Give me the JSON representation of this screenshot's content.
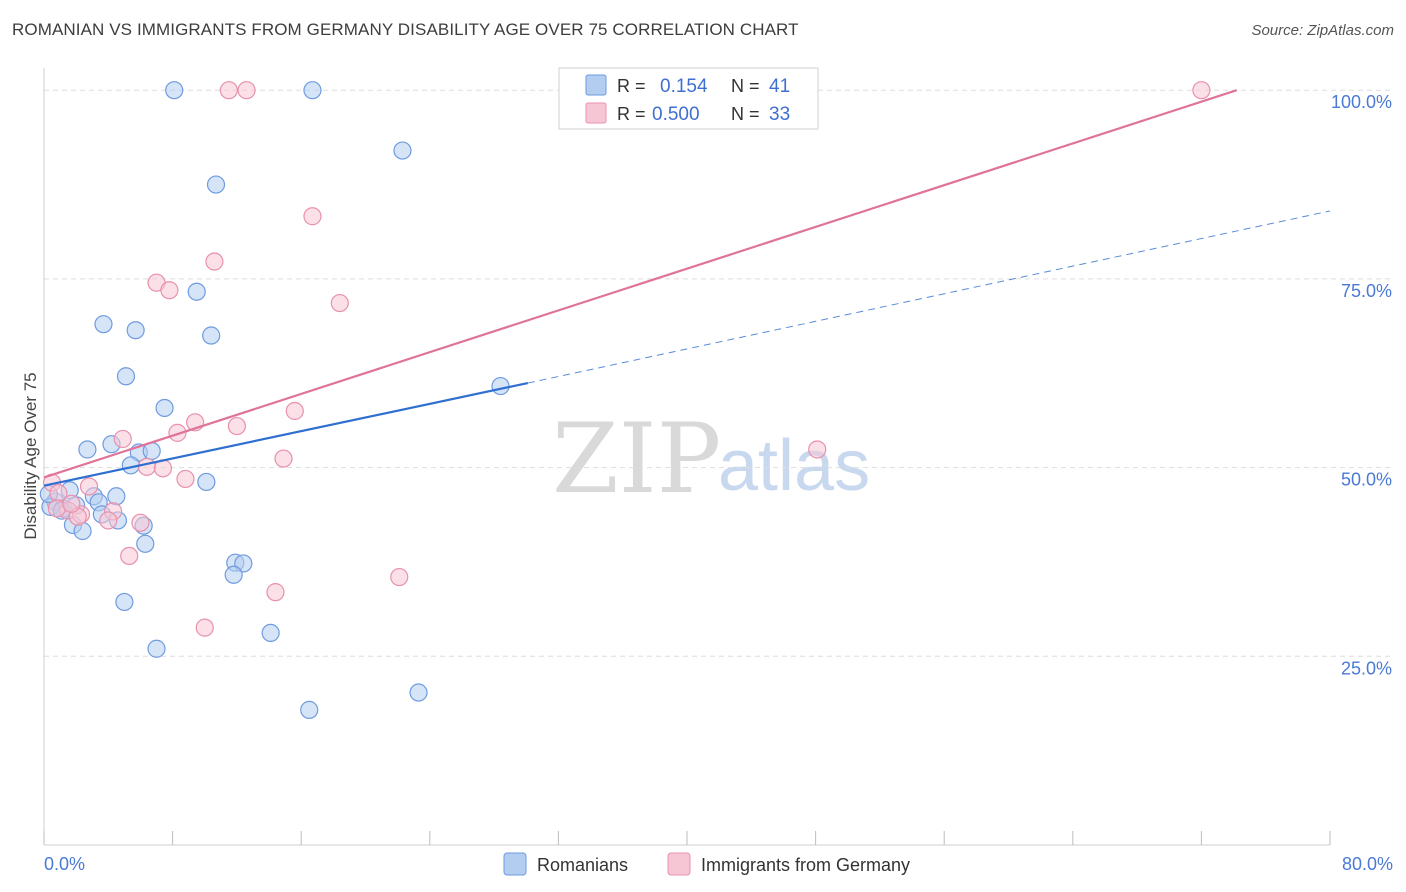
{
  "title": "ROMANIAN VS IMMIGRANTS FROM GERMANY DISABILITY AGE OVER 75 CORRELATION CHART",
  "source": "Source: ZipAtlas.com",
  "watermark": {
    "zip": "ZIP",
    "atlas": "atlas"
  },
  "colors": {
    "blue_fill": "#b3cdf1",
    "blue_stroke": "#6f9be0",
    "blue_line": "#2f6fd0",
    "pink_fill": "#f7c6d5",
    "pink_stroke": "#e891ad",
    "pink_line": "#e0739a",
    "tick_text": "#4a7ad6",
    "grid": "#dddddd"
  },
  "legend": {
    "r_label": "R =",
    "n_label": "N =",
    "rows": [
      {
        "r": "0.154",
        "n": "41"
      },
      {
        "r": "0.500",
        "n": "33"
      }
    ]
  },
  "bottom_legend": [
    "Romanians",
    "Immigrants from Germany"
  ],
  "chart_data": {
    "type": "scatter",
    "title": "ROMANIAN VS IMMIGRANTS FROM GERMANY DISABILITY AGE OVER 75 CORRELATION CHART",
    "xlabel": "",
    "ylabel": "Disability Age Over 75",
    "xlim": [
      0,
      80
    ],
    "ylim": [
      0,
      104
    ],
    "x_tick_labels": [
      "0.0%",
      "80.0%"
    ],
    "y_ticks": [
      25,
      50,
      75,
      100
    ],
    "y_tick_labels": [
      "25.0%",
      "50.0%",
      "75.0%",
      "100.0%"
    ],
    "grid": true,
    "legend_position": "top-center",
    "series": [
      {
        "name": "Romanians",
        "r": 0.154,
        "n": 41,
        "points": [
          [
            8.1,
            100
          ],
          [
            16.7,
            100
          ],
          [
            22.3,
            92.0
          ],
          [
            10.7,
            87.5
          ],
          [
            9.5,
            73.3
          ],
          [
            3.7,
            69.0
          ],
          [
            5.7,
            68.2
          ],
          [
            10.4,
            67.5
          ],
          [
            5.1,
            62.1
          ],
          [
            28.4,
            60.8
          ],
          [
            7.5,
            57.9
          ],
          [
            4.2,
            53.1
          ],
          [
            2.7,
            52.4
          ],
          [
            5.9,
            52.0
          ],
          [
            6.7,
            52.2
          ],
          [
            5.4,
            50.3
          ],
          [
            10.1,
            48.1
          ],
          [
            1.6,
            47.0
          ],
          [
            4.5,
            46.2
          ],
          [
            0.7,
            45.5
          ],
          [
            1.2,
            44.6
          ],
          [
            3.1,
            46.2
          ],
          [
            3.4,
            45.4
          ],
          [
            0.4,
            44.8
          ],
          [
            1.1,
            44.3
          ],
          [
            3.6,
            43.8
          ],
          [
            4.6,
            43.0
          ],
          [
            1.8,
            42.4
          ],
          [
            6.2,
            42.3
          ],
          [
            2.4,
            41.6
          ],
          [
            6.3,
            39.9
          ],
          [
            11.9,
            37.4
          ],
          [
            12.4,
            37.3
          ],
          [
            11.8,
            35.8
          ],
          [
            5.0,
            32.2
          ],
          [
            14.1,
            28.1
          ],
          [
            7.0,
            26.0
          ],
          [
            23.3,
            20.2
          ],
          [
            16.5,
            17.9
          ],
          [
            0.3,
            46.5
          ],
          [
            2.0,
            45.0
          ]
        ],
        "trend": {
          "x": [
            0,
            30.1
          ],
          "y": [
            47.6,
            61.2
          ],
          "dashed_to": [
            80,
            84.0
          ]
        }
      },
      {
        "name": "Immigrants from Germany",
        "r": 0.5,
        "n": 33,
        "points": [
          [
            11.5,
            100
          ],
          [
            12.6,
            100
          ],
          [
            72.0,
            100
          ],
          [
            16.7,
            83.3
          ],
          [
            10.6,
            77.3
          ],
          [
            7.0,
            74.5
          ],
          [
            7.8,
            73.5
          ],
          [
            18.4,
            71.8
          ],
          [
            15.6,
            57.5
          ],
          [
            9.4,
            56.0
          ],
          [
            12.0,
            55.5
          ],
          [
            8.3,
            54.6
          ],
          [
            4.9,
            53.8
          ],
          [
            48.1,
            52.4
          ],
          [
            14.9,
            51.2
          ],
          [
            6.4,
            50.1
          ],
          [
            7.4,
            49.9
          ],
          [
            8.8,
            48.5
          ],
          [
            0.5,
            48.0
          ],
          [
            2.8,
            47.5
          ],
          [
            0.9,
            46.6
          ],
          [
            4.3,
            44.2
          ],
          [
            1.5,
            44.3
          ],
          [
            2.3,
            43.8
          ],
          [
            0.8,
            44.6
          ],
          [
            2.1,
            43.5
          ],
          [
            4.0,
            43.0
          ],
          [
            6.0,
            42.7
          ],
          [
            5.3,
            38.3
          ],
          [
            22.1,
            35.5
          ],
          [
            14.4,
            33.5
          ],
          [
            10.0,
            28.8
          ],
          [
            1.7,
            45.2
          ]
        ],
        "trend": {
          "x": [
            0,
            74.2
          ],
          "y": [
            48.7,
            100
          ]
        }
      }
    ]
  }
}
